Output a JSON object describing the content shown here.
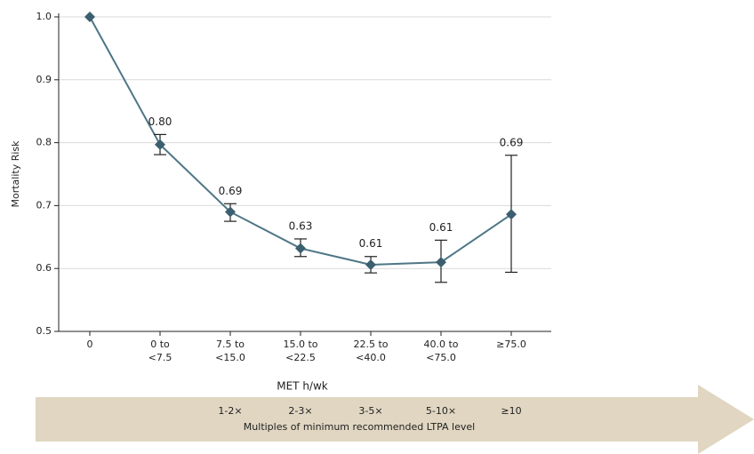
{
  "chart_data": {
    "type": "line",
    "categories": [
      [
        "0"
      ],
      [
        "0 to",
        "<7.5"
      ],
      [
        "7.5 to",
        "<15.0"
      ],
      [
        "15.0 to",
        "<22.5"
      ],
      [
        "22.5 to",
        "<40.0"
      ],
      [
        "40.0 to",
        "<75.0"
      ],
      [
        "≥75.0"
      ]
    ],
    "values": [
      1,
      0.797,
      0.69,
      0.632,
      0.606,
      0.61,
      0.686
    ],
    "value_labels": [
      null,
      "0.80",
      "0.69",
      "0.63",
      "0.61",
      "0.61",
      "0.69"
    ],
    "ci_lower": [
      null,
      0.781,
      0.675,
      0.619,
      0.593,
      0.578,
      0.594
    ],
    "ci_upper": [
      null,
      0.813,
      0.703,
      0.647,
      0.619,
      0.645,
      0.78
    ],
    "color": "#4f7686",
    "marker_color": "#3b5f6f",
    "ylim": [
      0.5,
      1
    ],
    "yticks": [
      0.5,
      0.6,
      0.7,
      0.8,
      0.9,
      {
        "value": 1,
        "label": "1.0"
      }
    ],
    "grid": true,
    "y_label": "Mortality Risk",
    "x_label": "MET h/wk",
    "multiples": [
      null,
      null,
      "1-2×",
      "2-3×",
      "3-5×",
      "5-10×",
      "≥10"
    ],
    "multiples_caption": "Multiples of minimum recommended LTPA level"
  }
}
